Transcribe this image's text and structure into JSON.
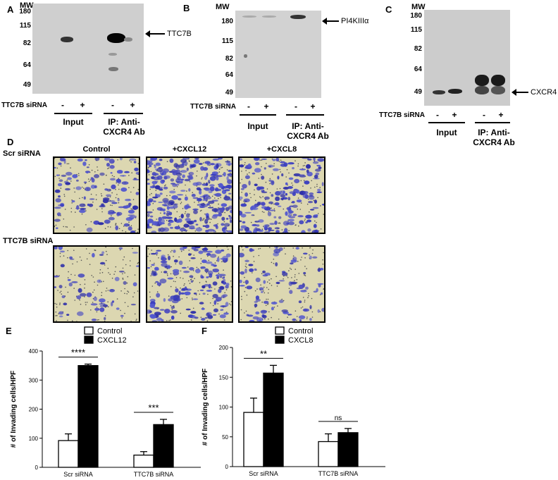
{
  "panel_a": {
    "letter": "A",
    "mw_label": "MW",
    "mw_ticks": [
      "180",
      "115",
      "82",
      "64",
      "49"
    ],
    "target_label": "TTC7B",
    "sirna_label": "TTC7B siRNA",
    "lane_signs": [
      "-",
      "+",
      "-",
      "+"
    ],
    "input_label": "Input",
    "ip_label_line1": "IP: Anti-",
    "ip_label_line2": "CXCR4 Ab"
  },
  "panel_b": {
    "letter": "B",
    "mw_label": "MW",
    "mw_ticks": [
      "180",
      "115",
      "82",
      "64",
      "49"
    ],
    "target_label": "PI4KIIIα",
    "sirna_label": "TTC7B siRNA",
    "lane_signs": [
      "-",
      "+",
      "-",
      "+"
    ],
    "input_label": "Input",
    "ip_label_line1": "IP: Anti-",
    "ip_label_line2": "CXCR4 Ab"
  },
  "panel_c": {
    "letter": "C",
    "mw_label": "MW",
    "mw_ticks": [
      "180",
      "115",
      "82",
      "64",
      "49"
    ],
    "target_label": "CXCR4",
    "sirna_label": "TTC7B siRNA",
    "lane_signs": [
      "-",
      "+",
      "-",
      "+"
    ],
    "input_label": "Input",
    "ip_label_line1": "IP: Anti-",
    "ip_label_line2": "CXCR4 Ab"
  },
  "panel_d": {
    "letter": "D",
    "row_labels": [
      "Scr siRNA",
      "TTC7B siRNA"
    ],
    "column_titles": [
      "Control",
      "+CXCL12",
      "+CXCL8"
    ],
    "cell_density": [
      [
        0.35,
        1.0,
        0.6
      ],
      [
        0.12,
        0.5,
        0.25
      ]
    ]
  },
  "chart_data": [
    {
      "panel_letter": "E",
      "type": "bar",
      "categories": [
        "Scr siRNA",
        "TTC7B siRNA"
      ],
      "series": [
        {
          "name": "Control",
          "values": [
            92,
            42
          ],
          "errors": [
            23,
            12
          ],
          "fill": "#ffffff"
        },
        {
          "name": "CXCL12",
          "values": [
            350,
            147
          ],
          "errors": [
            5,
            18
          ],
          "fill": "#000000"
        }
      ],
      "ylabel": "# of Invading cells/HPF",
      "ylim": [
        0,
        400
      ],
      "yticks": [
        "0",
        "100",
        "200",
        "300",
        "400"
      ],
      "significance": [
        "****",
        "***"
      ],
      "legend_position": "top"
    },
    {
      "panel_letter": "F",
      "type": "bar",
      "categories": [
        "Scr siRNA",
        "TTC7B siRNA"
      ],
      "series": [
        {
          "name": "Control",
          "values": [
            91,
            42
          ],
          "errors": [
            24,
            13
          ],
          "fill": "#ffffff"
        },
        {
          "name": "CXCL8",
          "values": [
            157,
            57
          ],
          "errors": [
            13,
            7
          ],
          "fill": "#000000"
        }
      ],
      "ylabel": "# of Invading cells/HPF",
      "ylim": [
        0,
        200
      ],
      "yticks": [
        "0",
        "50",
        "100",
        "150",
        "200"
      ],
      "significance": [
        "**",
        "ns"
      ],
      "legend_position": "top"
    }
  ]
}
